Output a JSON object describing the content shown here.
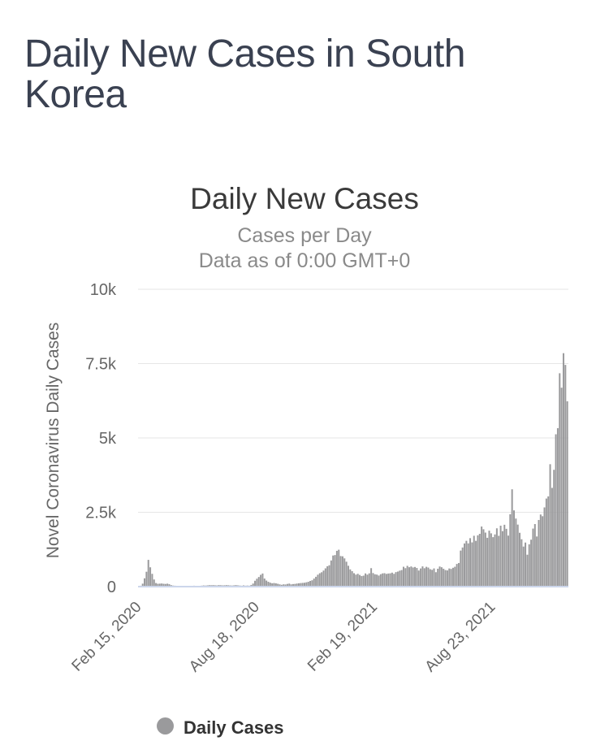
{
  "page": {
    "title": "Daily New Cases in South Korea"
  },
  "chart_data": {
    "type": "bar",
    "title": "Daily New Cases",
    "subtitle_line1": "Cases per Day",
    "subtitle_line2": "Data as of 0:00 GMT+0",
    "ylabel": "Novel Coronavirus Daily Cases",
    "xlabel": "",
    "ylim": [
      0,
      10000
    ],
    "grid": true,
    "legend_position": "bottom",
    "yticks": [
      {
        "value": 0,
        "label": "0"
      },
      {
        "value": 2500,
        "label": "2.5k"
      },
      {
        "value": 5000,
        "label": "5k"
      },
      {
        "value": 7500,
        "label": "7.5k"
      },
      {
        "value": 10000,
        "label": "10k"
      }
    ],
    "xticks": [
      {
        "position_days": 0,
        "label": "Feb 15, 2020"
      },
      {
        "position_days": 185,
        "label": "Aug 18, 2020"
      },
      {
        "position_days": 370,
        "label": "Feb 19, 2021"
      },
      {
        "position_days": 555,
        "label": "Aug 23, 2021"
      }
    ],
    "x_total_days": 675,
    "sample_interval_days": 3,
    "legend": {
      "items": [
        "Daily Cases"
      ]
    },
    "series": [
      {
        "name": "Daily Cases",
        "values": [
          5,
          30,
          100,
          280,
          500,
          900,
          650,
          430,
          240,
          120,
          95,
          100,
          105,
          95,
          90,
          100,
          80,
          50,
          35,
          30,
          25,
          15,
          10,
          10,
          8,
          12,
          14,
          18,
          25,
          30,
          26,
          22,
          27,
          32,
          40,
          35,
          42,
          50,
          46,
          51,
          45,
          40,
          52,
          47,
          42,
          45,
          50,
          46,
          40,
          36,
          44,
          51,
          42,
          36,
          31,
          41,
          32,
          36,
          31,
          56,
          103,
          197,
          266,
          324,
          397,
          441,
          271,
          204,
          162,
          133,
          113,
          121,
          110,
          95,
          76,
          61,
          77,
          72,
          91,
          102,
          76,
          86,
          91,
          103,
          112,
          119,
          126,
          131,
          146,
          163,
          191,
          213,
          271,
          331,
          401,
          451,
          483,
          540,
          615,
          686,
          718,
          880,
          1046,
          1062,
          1204,
          1241,
          1028,
          1020,
          950,
          838,
          702,
          580,
          520,
          451,
          404,
          431,
          392,
          355,
          370,
          444,
          403,
          447,
          621,
          456,
          415,
          405,
          372,
          418,
          445,
          452,
          428,
          441,
          447,
          470,
          430,
          488,
          506,
          537,
          558,
          668,
          621,
          698,
          653,
          678,
          644,
          661,
          627,
          542,
          611,
          681,
          619,
          666,
          641,
          587,
          564,
          612,
          485,
          602,
          677,
          652,
          602,
          557,
          545,
          610,
          595,
          634,
          668,
          762,
          794,
          1212,
          1316,
          1452,
          1540,
          1455,
          1630,
          1487,
          1710,
          1539,
          1725,
          1776,
          2021,
          1929,
          1817,
          1642,
          1882,
          1792,
          1664,
          1755,
          1961,
          1709,
          2049,
          1866,
          2080,
          1943,
          1716,
          2434,
          3273,
          2564,
          2289,
          2086,
          1810,
          1594,
          1347,
          1482,
          1073,
          1423,
          1579,
          1952,
          2104,
          1686,
          2241,
          2425,
          2368,
          2664,
          2962,
          3034,
          4116,
          3320,
          3928,
          5123,
          5328,
          7175,
          6689,
          7850,
          7456,
          6233
        ]
      }
    ]
  },
  "colors": {
    "bar": "#9a9a9c",
    "grid_line": "#e6e6e6",
    "axis_line": "#ccd6eb",
    "title_text": "#3a3a3a",
    "subtitle_text": "#8a8a8a",
    "axis_text": "#666666",
    "page_title_text": "#3a4151",
    "legend_text": "#333333"
  }
}
